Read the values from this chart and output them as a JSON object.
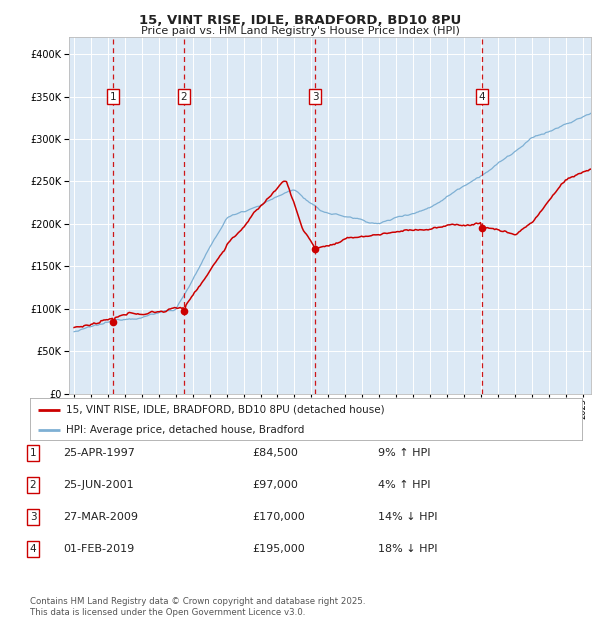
{
  "title": "15, VINT RISE, IDLE, BRADFORD, BD10 8PU",
  "subtitle": "Price paid vs. HM Land Registry's House Price Index (HPI)",
  "bg_color": "#dce9f5",
  "hpi_color": "#7eb0d4",
  "price_color": "#cc0000",
  "vline_color": "#cc0000",
  "sale_points": [
    {
      "year": 1997.32,
      "price": 84500,
      "label": "1"
    },
    {
      "year": 2001.48,
      "price": 97000,
      "label": "2"
    },
    {
      "year": 2009.23,
      "price": 170000,
      "label": "3"
    },
    {
      "year": 2019.08,
      "price": 195000,
      "label": "4"
    }
  ],
  "table_data": [
    [
      "1",
      "25-APR-1997",
      "£84,500",
      "9% ↑ HPI"
    ],
    [
      "2",
      "25-JUN-2001",
      "£97,000",
      "4% ↑ HPI"
    ],
    [
      "3",
      "27-MAR-2009",
      "£170,000",
      "14% ↓ HPI"
    ],
    [
      "4",
      "01-FEB-2019",
      "£195,000",
      "18% ↓ HPI"
    ]
  ],
  "legend_entries": [
    "15, VINT RISE, IDLE, BRADFORD, BD10 8PU (detached house)",
    "HPI: Average price, detached house, Bradford"
  ],
  "footer": "Contains HM Land Registry data © Crown copyright and database right 2025.\nThis data is licensed under the Open Government Licence v3.0.",
  "ylim": [
    0,
    420000
  ],
  "yticks": [
    0,
    50000,
    100000,
    150000,
    200000,
    250000,
    300000,
    350000,
    400000
  ],
  "year_start": 1995,
  "year_end": 2025
}
